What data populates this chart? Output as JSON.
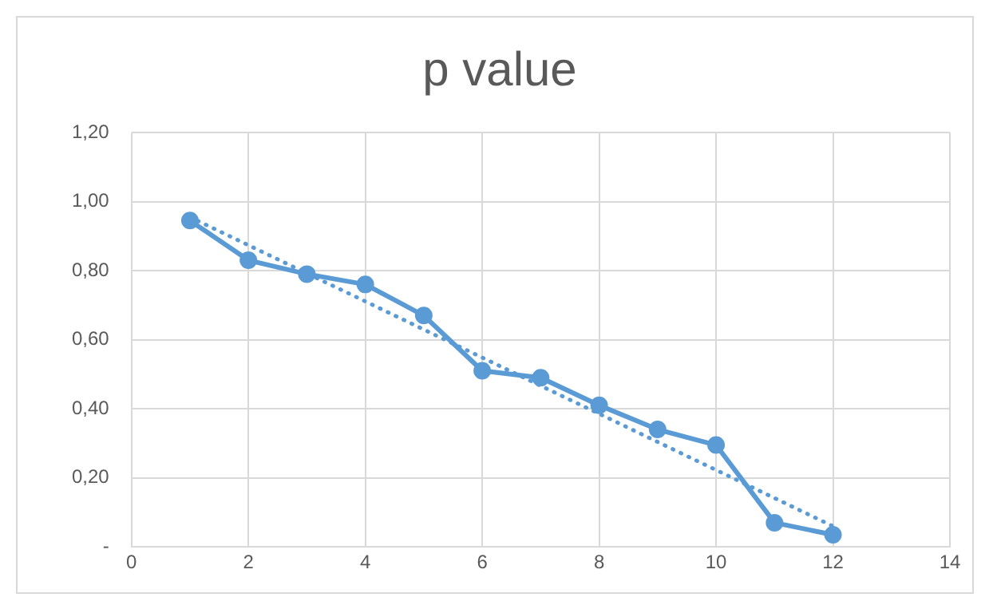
{
  "chart_data": {
    "type": "line",
    "title": "p value",
    "x": [
      1,
      2,
      3,
      4,
      5,
      6,
      7,
      8,
      9,
      10,
      11,
      12
    ],
    "series": [
      {
        "color": "#5b9bd5",
        "values": [
          0.945,
          0.83,
          0.79,
          0.76,
          0.67,
          0.51,
          0.49,
          0.41,
          0.34,
          0.295,
          0.07,
          0.035
        ],
        "marker": "circle",
        "line_style": "solid"
      },
      {
        "type": "line",
        "color": "#5b9bd5",
        "x": [
          1,
          12
        ],
        "values": [
          0.955,
          0.06
        ],
        "marker": "none",
        "line_style": "dotted"
      }
    ],
    "xlim": [
      0,
      14
    ],
    "xticks": [
      0,
      2,
      4,
      6,
      8,
      10,
      12,
      14
    ],
    "ylim": [
      0,
      1.2
    ],
    "yticks": [
      {
        "value": 0,
        "label": "-"
      },
      {
        "value": 0.2,
        "label": "0,20"
      },
      {
        "value": 0.4,
        "label": "0,40"
      },
      {
        "value": 0.6,
        "label": "0,60"
      },
      {
        "value": 0.8,
        "label": "0,80"
      },
      {
        "value": 1,
        "label": "1,00"
      },
      {
        "value": 1.2,
        "label": "1,20"
      }
    ],
    "grid": true,
    "legend": false
  }
}
